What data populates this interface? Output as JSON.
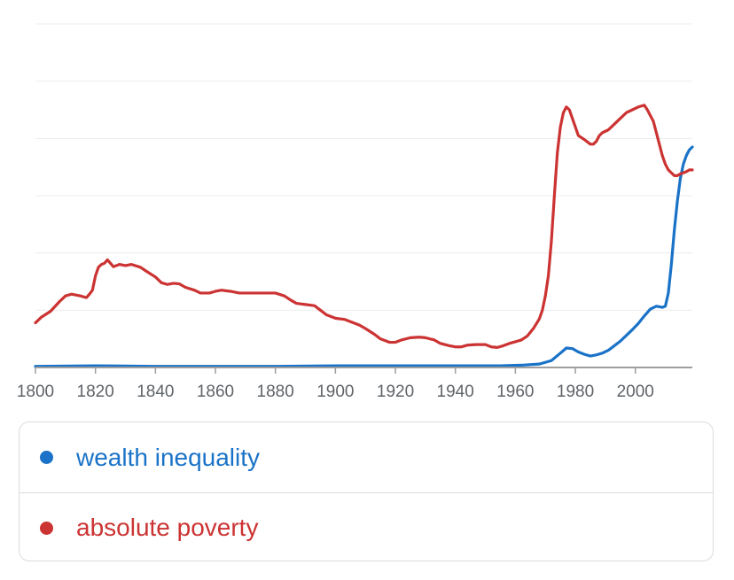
{
  "chart_data": {
    "type": "line",
    "title": "",
    "xlabel": "",
    "ylabel": "",
    "xlim": [
      1800,
      2019
    ],
    "ylim": [
      0,
      6
    ],
    "x_ticks": [
      "1800",
      "1820",
      "1840",
      "1860",
      "1880",
      "1900",
      "1920",
      "1940",
      "1960",
      "1980",
      "2000"
    ],
    "grid": true,
    "legend_position": "bottom",
    "series": [
      {
        "name": "wealth inequality",
        "color": "#1a73c8",
        "points": [
          [
            1800,
            0.02
          ],
          [
            1820,
            0.03
          ],
          [
            1840,
            0.02
          ],
          [
            1860,
            0.02
          ],
          [
            1880,
            0.02
          ],
          [
            1900,
            0.03
          ],
          [
            1920,
            0.03
          ],
          [
            1940,
            0.03
          ],
          [
            1955,
            0.03
          ],
          [
            1962,
            0.04
          ],
          [
            1968,
            0.06
          ],
          [
            1972,
            0.12
          ],
          [
            1975,
            0.25
          ],
          [
            1977,
            0.34
          ],
          [
            1979,
            0.33
          ],
          [
            1981,
            0.27
          ],
          [
            1983,
            0.23
          ],
          [
            1985,
            0.2
          ],
          [
            1987,
            0.22
          ],
          [
            1989,
            0.25
          ],
          [
            1991,
            0.3
          ],
          [
            1993,
            0.38
          ],
          [
            1995,
            0.46
          ],
          [
            1997,
            0.56
          ],
          [
            1999,
            0.66
          ],
          [
            2001,
            0.77
          ],
          [
            2003,
            0.9
          ],
          [
            2005,
            1.02
          ],
          [
            2007,
            1.07
          ],
          [
            2009,
            1.05
          ],
          [
            2010,
            1.07
          ],
          [
            2011,
            1.3
          ],
          [
            2012,
            1.8
          ],
          [
            2013,
            2.4
          ],
          [
            2014,
            2.9
          ],
          [
            2015,
            3.3
          ],
          [
            2016,
            3.55
          ],
          [
            2017,
            3.7
          ],
          [
            2018,
            3.8
          ],
          [
            2019,
            3.85
          ]
        ]
      },
      {
        "name": "absolute poverty",
        "color": "#cc3333",
        "points": [
          [
            1800,
            0.78
          ],
          [
            1802,
            0.88
          ],
          [
            1805,
            0.98
          ],
          [
            1808,
            1.15
          ],
          [
            1810,
            1.25
          ],
          [
            1812,
            1.28
          ],
          [
            1815,
            1.25
          ],
          [
            1817,
            1.22
          ],
          [
            1818,
            1.28
          ],
          [
            1819,
            1.35
          ],
          [
            1820,
            1.6
          ],
          [
            1821,
            1.75
          ],
          [
            1822,
            1.8
          ],
          [
            1823,
            1.82
          ],
          [
            1824,
            1.88
          ],
          [
            1825,
            1.82
          ],
          [
            1826,
            1.76
          ],
          [
            1828,
            1.8
          ],
          [
            1830,
            1.78
          ],
          [
            1832,
            1.8
          ],
          [
            1835,
            1.75
          ],
          [
            1837,
            1.68
          ],
          [
            1840,
            1.58
          ],
          [
            1842,
            1.48
          ],
          [
            1844,
            1.45
          ],
          [
            1846,
            1.47
          ],
          [
            1848,
            1.46
          ],
          [
            1850,
            1.4
          ],
          [
            1853,
            1.35
          ],
          [
            1855,
            1.3
          ],
          [
            1858,
            1.3
          ],
          [
            1860,
            1.33
          ],
          [
            1862,
            1.35
          ],
          [
            1865,
            1.33
          ],
          [
            1868,
            1.3
          ],
          [
            1870,
            1.3
          ],
          [
            1873,
            1.3
          ],
          [
            1876,
            1.3
          ],
          [
            1880,
            1.3
          ],
          [
            1883,
            1.25
          ],
          [
            1885,
            1.18
          ],
          [
            1887,
            1.12
          ],
          [
            1890,
            1.1
          ],
          [
            1893,
            1.08
          ],
          [
            1895,
            1.0
          ],
          [
            1897,
            0.92
          ],
          [
            1900,
            0.86
          ],
          [
            1903,
            0.84
          ],
          [
            1905,
            0.8
          ],
          [
            1908,
            0.74
          ],
          [
            1910,
            0.68
          ],
          [
            1913,
            0.58
          ],
          [
            1915,
            0.5
          ],
          [
            1918,
            0.44
          ],
          [
            1920,
            0.44
          ],
          [
            1922,
            0.48
          ],
          [
            1925,
            0.52
          ],
          [
            1928,
            0.53
          ],
          [
            1930,
            0.52
          ],
          [
            1933,
            0.48
          ],
          [
            1935,
            0.42
          ],
          [
            1938,
            0.38
          ],
          [
            1940,
            0.36
          ],
          [
            1942,
            0.36
          ],
          [
            1944,
            0.39
          ],
          [
            1947,
            0.4
          ],
          [
            1950,
            0.4
          ],
          [
            1952,
            0.36
          ],
          [
            1954,
            0.35
          ],
          [
            1956,
            0.38
          ],
          [
            1958,
            0.42
          ],
          [
            1960,
            0.45
          ],
          [
            1962,
            0.48
          ],
          [
            1964,
            0.55
          ],
          [
            1966,
            0.68
          ],
          [
            1968,
            0.85
          ],
          [
            1969,
            1.0
          ],
          [
            1970,
            1.25
          ],
          [
            1971,
            1.6
          ],
          [
            1972,
            2.2
          ],
          [
            1973,
            3.0
          ],
          [
            1974,
            3.75
          ],
          [
            1975,
            4.2
          ],
          [
            1976,
            4.45
          ],
          [
            1977,
            4.55
          ],
          [
            1978,
            4.5
          ],
          [
            1979,
            4.35
          ],
          [
            1980,
            4.2
          ],
          [
            1981,
            4.05
          ],
          [
            1983,
            3.98
          ],
          [
            1985,
            3.9
          ],
          [
            1986,
            3.9
          ],
          [
            1987,
            3.95
          ],
          [
            1988,
            4.05
          ],
          [
            1989,
            4.1
          ],
          [
            1991,
            4.15
          ],
          [
            1993,
            4.25
          ],
          [
            1995,
            4.35
          ],
          [
            1997,
            4.45
          ],
          [
            1999,
            4.5
          ],
          [
            2001,
            4.55
          ],
          [
            2003,
            4.58
          ],
          [
            2004,
            4.5
          ],
          [
            2005,
            4.4
          ],
          [
            2006,
            4.3
          ],
          [
            2007,
            4.1
          ],
          [
            2008,
            3.9
          ],
          [
            2009,
            3.7
          ],
          [
            2010,
            3.55
          ],
          [
            2011,
            3.45
          ],
          [
            2012,
            3.4
          ],
          [
            2013,
            3.35
          ],
          [
            2014,
            3.35
          ],
          [
            2015,
            3.38
          ],
          [
            2016,
            3.4
          ],
          [
            2017,
            3.42
          ],
          [
            2018,
            3.45
          ],
          [
            2019,
            3.45
          ]
        ]
      }
    ]
  }
}
